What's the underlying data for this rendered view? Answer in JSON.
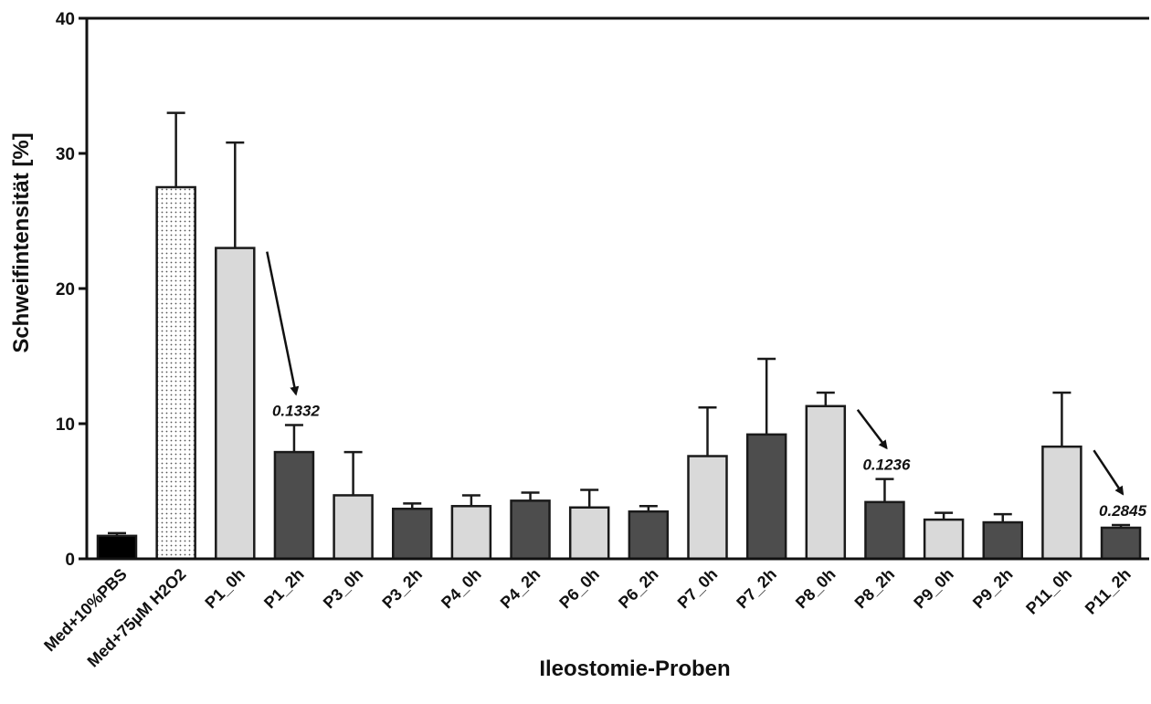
{
  "chart_data": {
    "type": "bar",
    "title": "",
    "xlabel": "Ileostomie-Proben",
    "ylabel": "Schweifintensität [%]",
    "ylim": [
      0,
      40
    ],
    "yticks": [
      0,
      10,
      20,
      30,
      40
    ],
    "grid": false,
    "categories": [
      "Med+10%PBS",
      "Med+75µM H2O2",
      "P1_0h",
      "P1_2h",
      "P3_0h",
      "P3_2h",
      "P4_0h",
      "P4_2h",
      "P6_0h",
      "P6_2h",
      "P7_0h",
      "P7_2h",
      "P8_0h",
      "P8_2h",
      "P9_0h",
      "P9_2h",
      "P11_0h",
      "P11_2h"
    ],
    "values": [
      1.7,
      27.5,
      23.0,
      7.9,
      4.7,
      3.7,
      3.9,
      4.3,
      3.8,
      3.5,
      7.6,
      9.2,
      11.3,
      4.2,
      2.9,
      2.7,
      8.3,
      2.3
    ],
    "error_upper": [
      0.2,
      5.5,
      7.8,
      2.0,
      3.2,
      0.4,
      0.8,
      0.6,
      1.3,
      0.4,
      3.6,
      5.6,
      1.0,
      1.7,
      0.5,
      0.6,
      4.0,
      0.2
    ],
    "bar_styles": [
      "control-black",
      "control-dotted",
      "light",
      "dark",
      "light",
      "dark",
      "light",
      "dark",
      "light",
      "dark",
      "light",
      "dark",
      "light",
      "dark",
      "light",
      "dark",
      "light",
      "dark"
    ],
    "colors": {
      "light": "#d9d9d9",
      "dark": "#4d4d4d",
      "control-black": "#000000",
      "dotted_bg": "#ffffff",
      "dotted_dot": "#555555",
      "axis": "#111111"
    },
    "annotations": [
      {
        "text": "0.1332",
        "from_index": 2,
        "to_index": 3
      },
      {
        "text": "0.1236",
        "from_index": 12,
        "to_index": 13
      },
      {
        "text": "0.2845",
        "from_index": 16,
        "to_index": 17
      }
    ]
  }
}
